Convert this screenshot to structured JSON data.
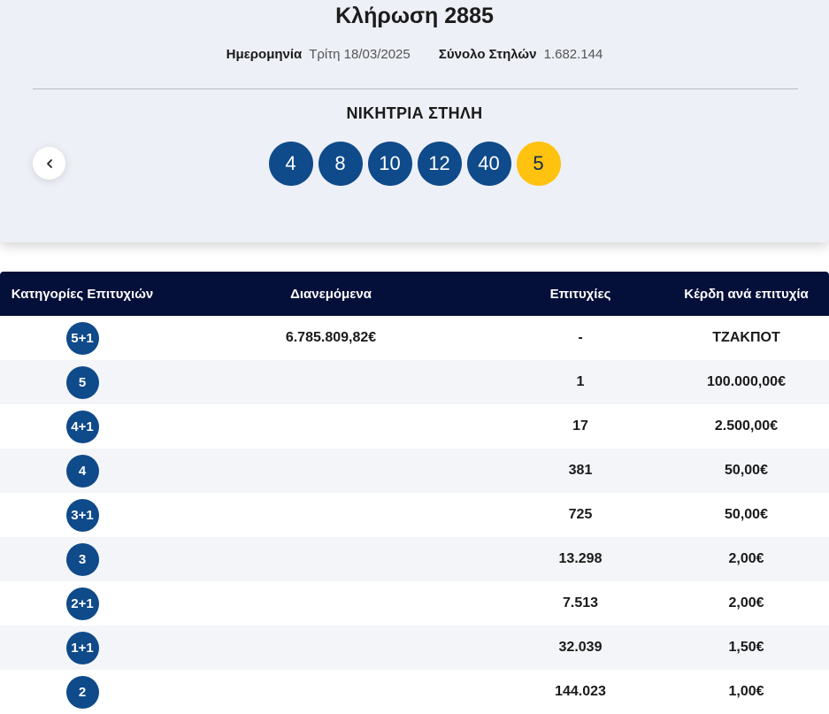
{
  "draw": {
    "title": "Κλήρωση 2885",
    "date_label": "Ημερομηνία",
    "date_value": "Τρίτη 18/03/2025",
    "columns_label": "Σύνολο Στηλών",
    "columns_value": "1.682.144"
  },
  "winning": {
    "title": "ΝΙΚΗΤΡΙΑ ΣΤΗΛΗ",
    "numbers": [
      "4",
      "8",
      "10",
      "12",
      "40"
    ],
    "bonus": "5",
    "bonus_color": "#ffc20e",
    "ball_color": "#0f4a8a"
  },
  "nav": {
    "prev_icon": "chevron-left-icon"
  },
  "table": {
    "headers": {
      "category": "Κατηγορίες Επιτυχιών",
      "distributed": "Διανεμόμενα",
      "winners": "Επιτυχίες",
      "prize": "Κέρδη ανά επιτυχία"
    },
    "rows": [
      {
        "category": "5+1",
        "distributed": "6.785.809,82€",
        "winners": "-",
        "prize": "ΤΖΑΚΠΟΤ"
      },
      {
        "category": "5",
        "distributed": "",
        "winners": "1",
        "prize": "100.000,00€"
      },
      {
        "category": "4+1",
        "distributed": "",
        "winners": "17",
        "prize": "2.500,00€"
      },
      {
        "category": "4",
        "distributed": "",
        "winners": "381",
        "prize": "50,00€"
      },
      {
        "category": "3+1",
        "distributed": "",
        "winners": "725",
        "prize": "50,00€"
      },
      {
        "category": "3",
        "distributed": "",
        "winners": "13.298",
        "prize": "2,00€"
      },
      {
        "category": "2+1",
        "distributed": "",
        "winners": "7.513",
        "prize": "2,00€"
      },
      {
        "category": "1+1",
        "distributed": "",
        "winners": "32.039",
        "prize": "1,50€"
      },
      {
        "category": "2",
        "distributed": "",
        "winners": "144.023",
        "prize": "1,00€"
      }
    ],
    "header_color": "#05103a"
  }
}
